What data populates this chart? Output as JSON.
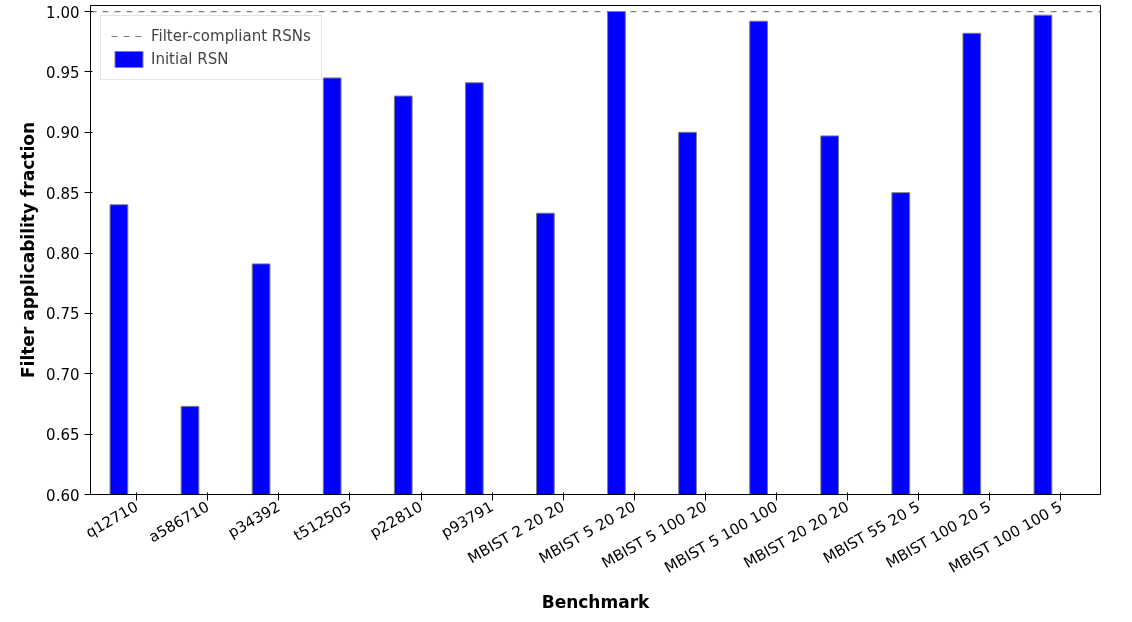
{
  "chart_data": {
    "type": "bar",
    "xlabel": "Benchmark",
    "ylabel": "Filter applicability fraction",
    "categories": [
      "q12710",
      "a586710",
      "p34392",
      "t512505",
      "p22810",
      "p93791",
      "MBIST 2 20 20",
      "MBIST 5 20 20",
      "MBIST 5 100 20",
      "MBIST 5 100 100",
      "MBIST 20 20 20",
      "MBIST 55 20 5",
      "MBIST 100 20 5",
      "MBIST 100 100 5"
    ],
    "series": [
      {
        "name": "Initial RSN",
        "color": "#0000ff",
        "values": [
          0.84,
          0.673,
          0.791,
          0.945,
          0.93,
          0.941,
          0.833,
          1.0,
          0.9,
          0.992,
          0.897,
          0.85,
          0.982,
          0.997
        ]
      }
    ],
    "ref_lines": [
      {
        "axis": "y",
        "value": 1.0,
        "label": "Filter-compliant RSNs",
        "color": "#808080",
        "line_style": "dashed"
      }
    ],
    "ylim": [
      0.6,
      1.005
    ],
    "yticks": [
      {
        "value": 0.6,
        "label": "0.60"
      },
      {
        "value": 0.65,
        "label": "0.65"
      },
      {
        "value": 0.7,
        "label": "0.70"
      },
      {
        "value": 0.75,
        "label": "0.75"
      },
      {
        "value": 0.8,
        "label": "0.80"
      },
      {
        "value": 0.85,
        "label": "0.85"
      },
      {
        "value": 0.9,
        "label": "0.90"
      },
      {
        "value": 0.95,
        "label": "0.95"
      },
      {
        "value": 1.0,
        "label": "1.00"
      }
    ],
    "grid": false,
    "legend": "top left"
  }
}
